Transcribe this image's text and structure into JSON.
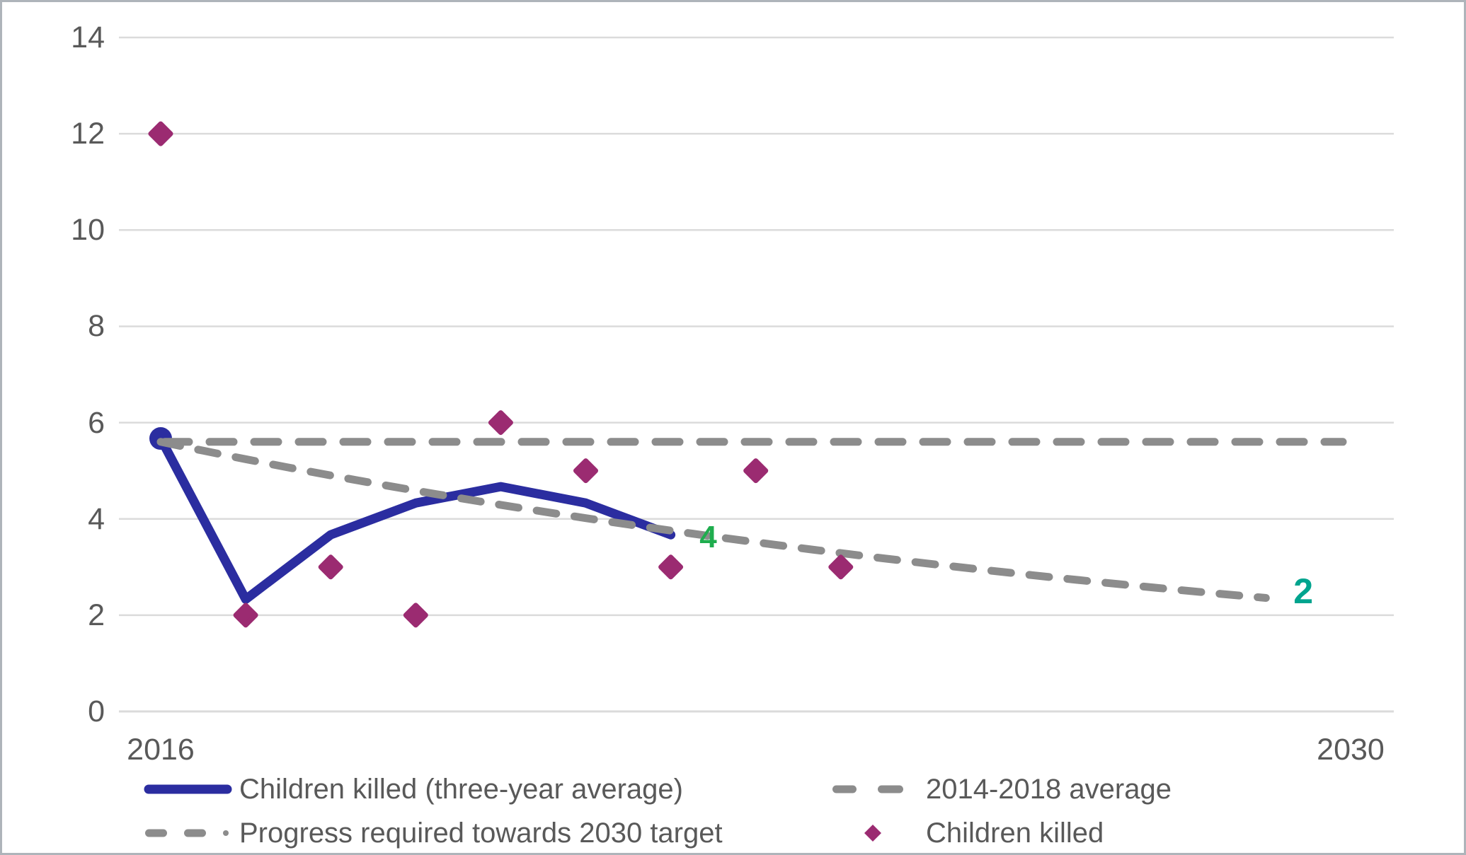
{
  "chart_data": {
    "type": "line",
    "title": "",
    "x_axis": {
      "min": 2016,
      "max": 2030,
      "tick_labels": [
        "2016",
        "2030"
      ],
      "tick_years": [
        2016,
        2030
      ]
    },
    "y_axis": {
      "min": 0,
      "max": 14,
      "ticks": [
        0,
        2,
        4,
        6,
        8,
        10,
        12,
        14
      ],
      "grid": true
    },
    "series": [
      {
        "name": "Children killed (three-year average)",
        "type": "line",
        "color": "#2B2DA0",
        "start_marker": true,
        "points": [
          [
            2016,
            5.67
          ],
          [
            2017,
            2.33
          ],
          [
            2018,
            3.67
          ],
          [
            2019,
            4.33
          ],
          [
            2020,
            4.67
          ],
          [
            2021,
            4.33
          ],
          [
            2022,
            3.67
          ]
        ]
      },
      {
        "name": "2014-2018 average",
        "type": "average-line",
        "color": "#8C8C8C",
        "value": 5.6,
        "x_start": 2016,
        "x_end": 2029.9
      },
      {
        "name": "Progress required towards 2030 target",
        "type": "target-curve",
        "color": "#8C8C8C",
        "from": [
          2016,
          5.6
        ],
        "to": [
          2029.05,
          2.35
        ]
      },
      {
        "name": "Children killed",
        "type": "scatter",
        "color": "#9B2B71",
        "marker": "diamond",
        "points": [
          [
            2016,
            12
          ],
          [
            2017,
            2
          ],
          [
            2018,
            3
          ],
          [
            2019,
            2
          ],
          [
            2020,
            6
          ],
          [
            2021,
            5
          ],
          [
            2022,
            3
          ],
          [
            2023,
            5
          ],
          [
            2024,
            3
          ]
        ]
      }
    ],
    "annotations": [
      {
        "text": "4",
        "x": 2022.44,
        "y": 3.61,
        "color": "#1FAD4E",
        "size": 44
      },
      {
        "text": "2",
        "x": 2029.44,
        "y": 2.5,
        "color": "#00A48E",
        "size": 50
      }
    ],
    "colors": {
      "gridline": "#DBDBDB",
      "axis_text": "#595959"
    },
    "legend_position": "bottom"
  },
  "legend": {
    "items": [
      {
        "label": "Children killed (three-year average)",
        "swatch": "solid-line",
        "color": "#2B2DA0"
      },
      {
        "label": "Progress required towards 2030 target",
        "swatch": "dash-dot",
        "color": "#8C8C8C"
      },
      {
        "label": "2014-2018 average",
        "swatch": "dashes",
        "color": "#8C8C8C"
      },
      {
        "label": "Children killed",
        "swatch": "diamond",
        "color": "#9B2B71"
      }
    ]
  }
}
